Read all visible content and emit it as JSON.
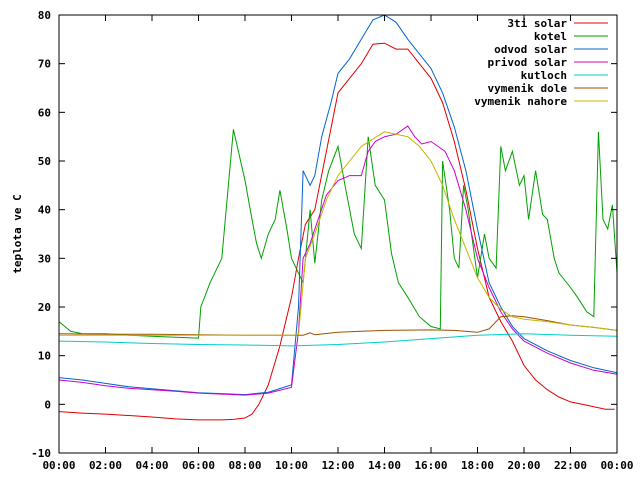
{
  "chart_data": {
    "type": "line",
    "title": "",
    "xlabel": "",
    "ylabel": "teplota ve C",
    "xlim": [
      0,
      24
    ],
    "ylim": [
      -10,
      80
    ],
    "grid": false,
    "legend": "top-right",
    "x_ticks": [
      "00:00",
      "02:00",
      "04:00",
      "06:00",
      "08:00",
      "10:00",
      "12:00",
      "14:00",
      "16:00",
      "18:00",
      "20:00",
      "22:00",
      "00:00"
    ],
    "y_ticks": [
      -10,
      0,
      10,
      20,
      30,
      40,
      50,
      60,
      70,
      80
    ],
    "series": [
      {
        "name": "3ti solar",
        "color": "#e00000",
        "points": [
          [
            0,
            -1.5
          ],
          [
            1,
            -1.8
          ],
          [
            2,
            -2
          ],
          [
            3,
            -2.3
          ],
          [
            4,
            -2.6
          ],
          [
            5,
            -3
          ],
          [
            6,
            -3.2
          ],
          [
            7,
            -3.2
          ],
          [
            7.5,
            -3.1
          ],
          [
            8,
            -2.8
          ],
          [
            8.3,
            -2
          ],
          [
            8.6,
            0
          ],
          [
            9,
            4
          ],
          [
            9.5,
            12
          ],
          [
            10,
            22
          ],
          [
            10.3,
            30
          ],
          [
            10.6,
            37
          ],
          [
            11,
            40
          ],
          [
            11.5,
            52
          ],
          [
            12,
            64
          ],
          [
            12.5,
            67
          ],
          [
            13,
            70
          ],
          [
            13.5,
            74
          ],
          [
            14,
            74.2
          ],
          [
            14.5,
            73
          ],
          [
            15,
            73
          ],
          [
            15.5,
            70
          ],
          [
            16,
            67
          ],
          [
            16.5,
            62
          ],
          [
            17,
            54
          ],
          [
            17.5,
            44
          ],
          [
            18,
            32
          ],
          [
            18.5,
            22
          ],
          [
            19,
            17
          ],
          [
            19.5,
            13
          ],
          [
            20,
            8
          ],
          [
            20.5,
            5
          ],
          [
            21,
            3
          ],
          [
            21.5,
            1.5
          ],
          [
            22,
            0.5
          ],
          [
            22.5,
            0
          ],
          [
            23,
            -0.5
          ],
          [
            23.5,
            -1
          ],
          [
            23.9,
            -1
          ]
        ]
      },
      {
        "name": "kotel",
        "color": "#00a000",
        "points": [
          [
            0,
            17
          ],
          [
            0.5,
            15
          ],
          [
            1,
            14.5
          ],
          [
            2,
            14.5
          ],
          [
            3,
            14.2
          ],
          [
            4,
            14
          ],
          [
            5,
            13.8
          ],
          [
            6,
            13.6
          ],
          [
            6.1,
            20
          ],
          [
            6.5,
            25
          ],
          [
            7,
            30
          ],
          [
            7.5,
            56.5
          ],
          [
            8,
            46
          ],
          [
            8.3,
            38
          ],
          [
            8.5,
            33
          ],
          [
            8.7,
            30
          ],
          [
            9,
            35
          ],
          [
            9.3,
            38
          ],
          [
            9.5,
            44
          ],
          [
            9.8,
            36
          ],
          [
            10,
            30
          ],
          [
            10.2,
            28
          ],
          [
            10.5,
            25
          ],
          [
            10.8,
            40
          ],
          [
            11,
            29
          ],
          [
            11.3,
            42
          ],
          [
            11.6,
            48
          ],
          [
            12,
            53
          ],
          [
            12.3,
            45
          ],
          [
            12.7,
            35
          ],
          [
            13,
            32
          ],
          [
            13.3,
            55
          ],
          [
            13.6,
            45
          ],
          [
            14,
            42
          ],
          [
            14.3,
            31
          ],
          [
            14.6,
            25
          ],
          [
            15,
            22
          ],
          [
            15.5,
            18
          ],
          [
            16,
            16
          ],
          [
            16.4,
            15.5
          ],
          [
            16.5,
            50
          ],
          [
            16.8,
            40
          ],
          [
            17,
            30
          ],
          [
            17.2,
            28
          ],
          [
            17.4,
            45
          ],
          [
            17.6,
            40
          ],
          [
            18,
            26
          ],
          [
            18.3,
            35
          ],
          [
            18.5,
            30
          ],
          [
            18.8,
            28
          ],
          [
            19,
            53
          ],
          [
            19.2,
            48
          ],
          [
            19.5,
            52
          ],
          [
            19.8,
            45
          ],
          [
            20,
            47
          ],
          [
            20.2,
            38
          ],
          [
            20.5,
            48
          ],
          [
            20.8,
            39
          ],
          [
            21,
            38
          ],
          [
            21.3,
            30
          ],
          [
            21.5,
            27
          ],
          [
            22,
            24
          ],
          [
            22.3,
            22
          ],
          [
            22.7,
            19
          ],
          [
            23,
            18
          ],
          [
            23.2,
            56
          ],
          [
            23.4,
            38
          ],
          [
            23.6,
            36
          ],
          [
            23.8,
            41
          ],
          [
            24,
            27
          ]
        ]
      },
      {
        "name": "odvod solar",
        "color": "#0066cc",
        "points": [
          [
            0,
            5.5
          ],
          [
            1,
            5
          ],
          [
            2,
            4.3
          ],
          [
            3,
            3.6
          ],
          [
            4,
            3.2
          ],
          [
            5,
            2.8
          ],
          [
            6,
            2.4
          ],
          [
            7,
            2.2
          ],
          [
            8,
            2
          ],
          [
            9,
            2.5
          ],
          [
            10,
            4
          ],
          [
            10.3,
            20
          ],
          [
            10.5,
            48
          ],
          [
            10.8,
            45
          ],
          [
            11,
            47
          ],
          [
            11.3,
            55
          ],
          [
            11.7,
            62
          ],
          [
            12,
            68
          ],
          [
            12.5,
            71
          ],
          [
            13,
            75
          ],
          [
            13.5,
            79
          ],
          [
            14,
            80
          ],
          [
            14.5,
            78.5
          ],
          [
            15,
            75
          ],
          [
            15.5,
            72
          ],
          [
            16,
            69
          ],
          [
            16.5,
            64
          ],
          [
            17,
            57
          ],
          [
            17.5,
            48
          ],
          [
            18,
            36
          ],
          [
            18.5,
            25
          ],
          [
            19,
            20
          ],
          [
            19.5,
            16
          ],
          [
            20,
            13.5
          ],
          [
            21,
            11
          ],
          [
            22,
            9
          ],
          [
            23,
            7.5
          ],
          [
            24,
            6.5
          ]
        ]
      },
      {
        "name": "privod solar",
        "color": "#cc00cc",
        "points": [
          [
            0,
            5
          ],
          [
            1,
            4.5
          ],
          [
            2,
            3.8
          ],
          [
            3,
            3.3
          ],
          [
            4,
            3
          ],
          [
            5,
            2.7
          ],
          [
            6,
            2.3
          ],
          [
            7,
            2.1
          ],
          [
            8,
            1.9
          ],
          [
            9,
            2.3
          ],
          [
            10,
            3.5
          ],
          [
            10.3,
            15
          ],
          [
            10.5,
            30
          ],
          [
            10.8,
            33
          ],
          [
            11,
            36
          ],
          [
            11.5,
            43
          ],
          [
            12,
            46
          ],
          [
            12.5,
            47
          ],
          [
            13,
            47
          ],
          [
            13.3,
            52
          ],
          [
            13.6,
            54
          ],
          [
            14,
            55
          ],
          [
            14.5,
            55.5
          ],
          [
            15,
            57.2
          ],
          [
            15.3,
            55
          ],
          [
            15.6,
            53.5
          ],
          [
            16,
            54
          ],
          [
            16.3,
            53
          ],
          [
            16.6,
            52
          ],
          [
            17,
            48
          ],
          [
            17.5,
            40
          ],
          [
            18,
            30
          ],
          [
            18.5,
            24
          ],
          [
            19,
            19
          ],
          [
            19.5,
            15.5
          ],
          [
            20,
            13
          ],
          [
            21,
            10.5
          ],
          [
            22,
            8.5
          ],
          [
            23,
            7
          ],
          [
            24,
            6.2
          ]
        ]
      },
      {
        "name": "kutloch",
        "color": "#00cccc",
        "points": [
          [
            0,
            13
          ],
          [
            2,
            12.8
          ],
          [
            4,
            12.5
          ],
          [
            6,
            12.3
          ],
          [
            8,
            12.2
          ],
          [
            10,
            12
          ],
          [
            12,
            12.3
          ],
          [
            14,
            12.8
          ],
          [
            16,
            13.5
          ],
          [
            18,
            14.2
          ],
          [
            20,
            14.5
          ],
          [
            22,
            14.2
          ],
          [
            24,
            14
          ]
        ]
      },
      {
        "name": "vymenik dole",
        "color": "#a05000",
        "points": [
          [
            0,
            14.5
          ],
          [
            2,
            14.4
          ],
          [
            4,
            14.4
          ],
          [
            6,
            14.3
          ],
          [
            8,
            14.2
          ],
          [
            10,
            14.2
          ],
          [
            10.5,
            14.2
          ],
          [
            10.8,
            14.7
          ],
          [
            11,
            14.3
          ],
          [
            12,
            14.8
          ],
          [
            13,
            15
          ],
          [
            14,
            15.2
          ],
          [
            16,
            15.3
          ],
          [
            17,
            15.2
          ],
          [
            18,
            14.8
          ],
          [
            18.5,
            15.5
          ],
          [
            19,
            18
          ],
          [
            19.5,
            18.2
          ],
          [
            20,
            18
          ],
          [
            21,
            17.2
          ],
          [
            22,
            16.3
          ],
          [
            23,
            15.8
          ],
          [
            24,
            15.2
          ]
        ]
      },
      {
        "name": "vymenik nahore",
        "color": "#c8b400",
        "points": [
          [
            0,
            14.2
          ],
          [
            2,
            14.2
          ],
          [
            4,
            14.2
          ],
          [
            6,
            14.2
          ],
          [
            8,
            14.2
          ],
          [
            10,
            14.2
          ],
          [
            10.3,
            14.3
          ],
          [
            10.6,
            30
          ],
          [
            11,
            35
          ],
          [
            11.5,
            42
          ],
          [
            12,
            47
          ],
          [
            12.5,
            50
          ],
          [
            13,
            53
          ],
          [
            13.5,
            54.5
          ],
          [
            14,
            56
          ],
          [
            14.5,
            55.5
          ],
          [
            15,
            55
          ],
          [
            15.5,
            53
          ],
          [
            16,
            50
          ],
          [
            16.5,
            45
          ],
          [
            17,
            38
          ],
          [
            17.5,
            32
          ],
          [
            18,
            26
          ],
          [
            18.5,
            22
          ],
          [
            19,
            19.5
          ],
          [
            19.5,
            18
          ],
          [
            20,
            17.5
          ],
          [
            21,
            17
          ],
          [
            22,
            16.3
          ],
          [
            23,
            15.8
          ],
          [
            24,
            15.2
          ]
        ]
      }
    ]
  }
}
